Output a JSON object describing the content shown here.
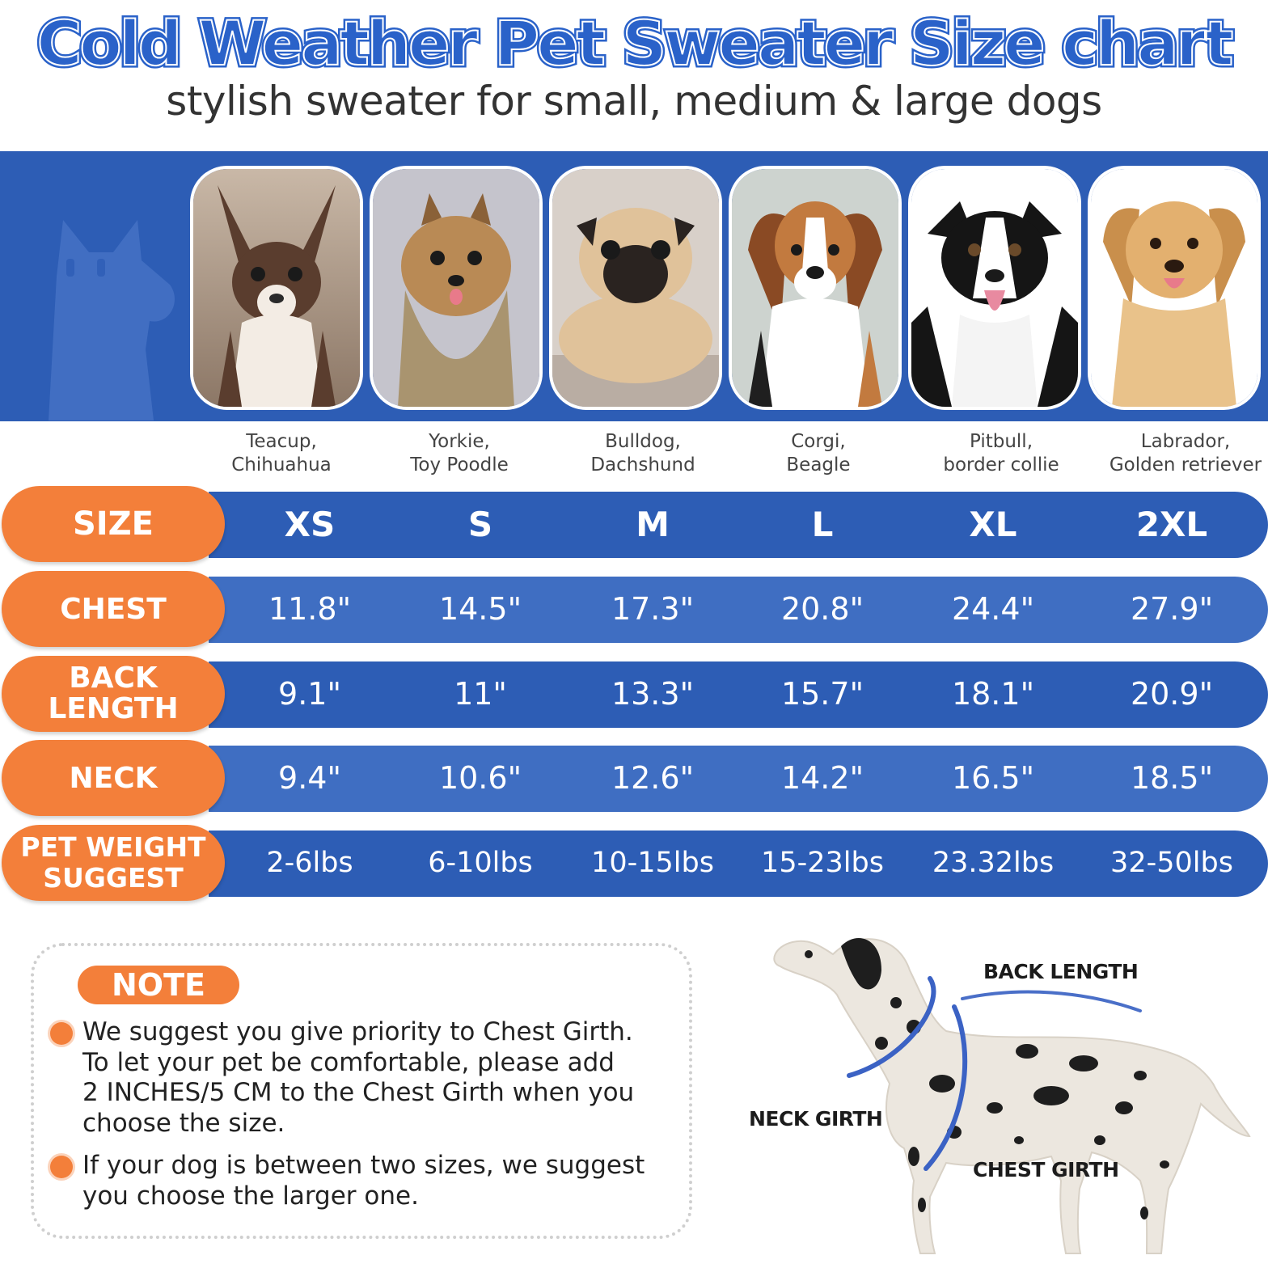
{
  "title": "Cold Weather Pet Sweater Size chart",
  "subtitle": "stylish sweater for small, medium & large dogs",
  "colors": {
    "blue": "#2d5db5",
    "blue_light": "#3f6ec2",
    "orange": "#f37f3a"
  },
  "breeds": [
    {
      "line1": "Teacup,",
      "line2": "Chihuahua"
    },
    {
      "line1": "Yorkie,",
      "line2": "Toy Poodle"
    },
    {
      "line1": "Bulldog,",
      "line2": "Dachshund"
    },
    {
      "line1": "Corgi,",
      "line2": "Beagle"
    },
    {
      "line1": "Pitbull,",
      "line2": "border collie"
    },
    {
      "line1": "Labrador,",
      "line2": "Golden retriever"
    }
  ],
  "table": {
    "size": {
      "label": "SIZE",
      "values": [
        "XS",
        "S",
        "M",
        "L",
        "XL",
        "2XL"
      ]
    },
    "chest": {
      "label": "CHEST",
      "values": [
        "11.8\"",
        "14.5\"",
        "17.3\"",
        "20.8\"",
        "24.4\"",
        "27.9\""
      ]
    },
    "back_length": {
      "label_line1": "BACK",
      "label_line2": "LENGTH",
      "values": [
        "9.1\"",
        "11\"",
        "13.3\"",
        "15.7\"",
        "18.1\"",
        "20.9\""
      ]
    },
    "neck": {
      "label": "NECK",
      "values": [
        "9.4\"",
        "10.6\"",
        "12.6\"",
        "14.2\"",
        "16.5\"",
        "18.5\""
      ]
    },
    "weight": {
      "label_line1": "PET WEIGHT",
      "label_line2": "SUGGEST",
      "values": [
        "2-6lbs",
        "6-10lbs",
        "10-15lbs",
        "15-23lbs",
        "23.32lbs",
        "32-50lbs"
      ]
    }
  },
  "note": {
    "badge": "NOTE",
    "item1_line1": "We suggest you give priority to Chest Girth.",
    "item1_line2": "To let your pet be comfortable, please add",
    "item1_line3": "2 INCHES/5 CM to the Chest Girth when you",
    "item1_line4": "choose the size.",
    "item2_line1": "If your dog is between two sizes, we suggest",
    "item2_line2": "you choose the larger one."
  },
  "diagram": {
    "back_length": "BACK LENGTH",
    "neck_girth": "NECK GIRTH",
    "chest_girth": "CHEST GIRTH"
  }
}
